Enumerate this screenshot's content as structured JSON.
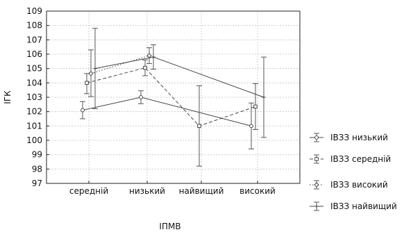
{
  "chart_data": {
    "type": "line",
    "xlabel": "ІПМВ",
    "ylabel": "ІГК",
    "categories": [
      "середній",
      "низький",
      "найвищий",
      "високий"
    ],
    "ylim": [
      97,
      109
    ],
    "yticks": [
      97,
      98,
      99,
      100,
      101,
      102,
      103,
      104,
      105,
      106,
      107,
      108,
      109
    ],
    "grid": true,
    "legend_position": "right",
    "error_bars": true,
    "series": [
      {
        "name": "ІВЗЗ низький",
        "line_style": "solid",
        "marker": "circle",
        "mean": [
          102.1,
          103.0,
          null,
          101.0
        ],
        "lower": [
          101.5,
          102.55,
          null,
          99.4
        ],
        "upper": [
          102.7,
          103.45,
          null,
          102.6
        ]
      },
      {
        "name": "ІВЗЗ середній",
        "line_style": "dashed",
        "marker": "square",
        "mean": [
          104.0,
          105.05,
          101.0,
          102.35
        ],
        "lower": [
          103.25,
          104.5,
          98.2,
          100.75
        ],
        "upper": [
          104.65,
          105.6,
          103.8,
          103.95
        ]
      },
      {
        "name": "ІВЗЗ високий",
        "line_style": "dotted",
        "marker": "diamond",
        "mean": [
          104.65,
          105.9,
          null,
          null
        ],
        "lower": [
          103.05,
          105.35,
          null,
          null
        ],
        "upper": [
          106.3,
          106.45,
          null,
          null
        ]
      },
      {
        "name": "ІВЗЗ найвищий",
        "line_style": "solid",
        "marker": "cross",
        "mean": [
          105.0,
          105.8,
          null,
          103.0
        ],
        "lower": [
          102.2,
          104.95,
          null,
          100.2
        ],
        "upper": [
          107.8,
          106.65,
          null,
          105.8
        ]
      }
    ]
  }
}
